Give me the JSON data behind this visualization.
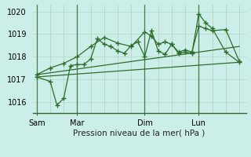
{
  "background_color": "#cceee8",
  "grid_color_h": "#bbddcc",
  "grid_color_v": "#bbccbb",
  "line_color": "#2d6e2d",
  "ylabel": "Pression niveau de la mer( hPa )",
  "ylim": [
    1015.5,
    1020.3
  ],
  "yticks": [
    1016,
    1017,
    1018,
    1019,
    1020
  ],
  "day_labels": [
    "Sam",
    "Mar",
    "Dim",
    "Lun"
  ],
  "day_positions": [
    0,
    3,
    8,
    12
  ],
  "vline_positions": [
    0,
    3,
    8,
    12
  ],
  "xlim": [
    -0.3,
    15.5
  ],
  "trend1_x": [
    0,
    15
  ],
  "trend1_y": [
    1017.1,
    1017.75
  ],
  "trend2_x": [
    0,
    15
  ],
  "trend2_y": [
    1017.2,
    1018.45
  ],
  "series1_x": [
    0,
    1,
    2,
    3,
    4,
    5,
    6,
    7,
    8,
    8.5,
    9,
    9.5,
    10,
    10.5,
    11,
    11.5,
    12,
    12.5,
    13,
    14,
    15
  ],
  "series1_y": [
    1017.2,
    1017.5,
    1017.7,
    1018.0,
    1018.45,
    1018.85,
    1018.6,
    1018.45,
    1019.1,
    1018.9,
    1018.55,
    1018.65,
    1018.55,
    1018.2,
    1018.3,
    1018.2,
    1019.35,
    1019.25,
    1019.15,
    1019.2,
    1017.8
  ],
  "series2_x": [
    0,
    1,
    1.5,
    2,
    2.5,
    3,
    3.5,
    4,
    4.5,
    5,
    5.5,
    6,
    6.5,
    7,
    7.5,
    8,
    8.5,
    9,
    9.5,
    10,
    10.5,
    11,
    11.5,
    12,
    12.5,
    13,
    14,
    15
  ],
  "series2_y": [
    1017.1,
    1016.9,
    1015.85,
    1016.15,
    1017.6,
    1017.65,
    1017.65,
    1017.9,
    1018.8,
    1018.55,
    1018.45,
    1018.25,
    1018.15,
    1018.5,
    1018.65,
    1018.0,
    1019.15,
    1018.25,
    1018.1,
    1018.55,
    1018.15,
    1018.2,
    1018.15,
    1019.9,
    1019.5,
    1019.25,
    1018.2,
    1017.75
  ]
}
